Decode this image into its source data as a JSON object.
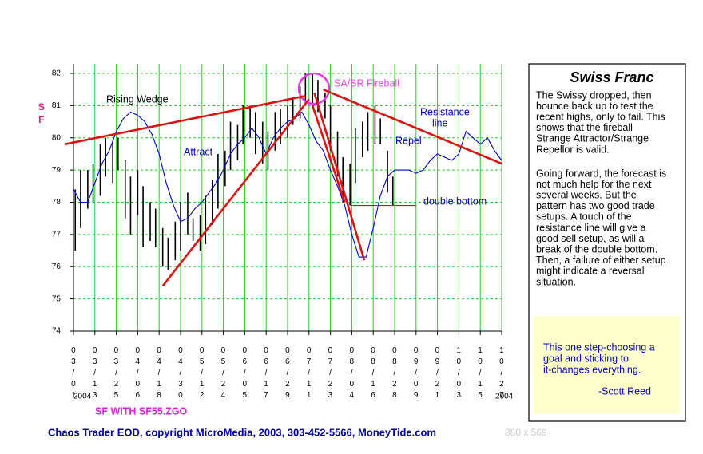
{
  "chart_data": {
    "type": "hilo",
    "y_label": "SF",
    "year_label": "2004",
    "ylim": [
      74,
      82
    ],
    "yticks": [
      74,
      75,
      76,
      77,
      78,
      79,
      80,
      81,
      82
    ],
    "xticks": [
      "03/01",
      "03/13",
      "03/25",
      "04/06",
      "04/18",
      "04/30",
      "05/12",
      "05/24",
      "06/05",
      "06/17",
      "06/29",
      "07/11",
      "07/23",
      "08/04",
      "08/16",
      "08/28",
      "09/09",
      "09/21",
      "10/03",
      "10/15",
      "10/27"
    ],
    "grid": true,
    "grid_color": "#22cc22",
    "bars": {
      "color": "#000000",
      "x": [
        "03/02",
        "03/05",
        "03/09",
        "03/12",
        "03/16",
        "03/19",
        "03/23",
        "03/26",
        "03/30",
        "04/02",
        "04/06",
        "04/09",
        "04/13",
        "04/16",
        "04/20",
        "04/23",
        "04/27",
        "04/30",
        "05/04",
        "05/07",
        "05/11",
        "05/14",
        "05/18",
        "05/21",
        "05/25",
        "05/28",
        "06/01",
        "06/04",
        "06/08",
        "06/11",
        "06/15",
        "06/18",
        "06/22",
        "06/25",
        "06/29",
        "07/02",
        "07/06",
        "07/09",
        "07/13",
        "07/16",
        "07/20",
        "07/23",
        "07/27",
        "07/30",
        "08/03",
        "08/06",
        "08/10",
        "08/13",
        "08/17",
        "08/20",
        "08/24",
        "08/27"
      ],
      "high": [
        78.4,
        79.0,
        79.0,
        79.2,
        79.8,
        80.0,
        79.9,
        80.0,
        79.3,
        78.8,
        79.0,
        78.5,
        78.0,
        77.8,
        77.2,
        76.9,
        77.4,
        78.0,
        78.3,
        77.5,
        77.6,
        78.2,
        78.7,
        79.5,
        79.6,
        80.5,
        80.4,
        81.0,
        81.0,
        80.8,
        80.5,
        80.2,
        80.8,
        80.9,
        81.0,
        81.2,
        81.6,
        82.0,
        82.0,
        81.8,
        81.4,
        81.0,
        80.2,
        79.4,
        79.2,
        80.3,
        80.5,
        80.8,
        81.0,
        80.6,
        79.6,
        78.8
      ],
      "low": [
        76.5,
        77.2,
        77.8,
        78.0,
        78.2,
        78.8,
        78.6,
        79.0,
        77.5,
        77.0,
        77.6,
        76.6,
        76.8,
        76.6,
        76.0,
        75.9,
        76.2,
        76.5,
        77.0,
        76.8,
        76.5,
        76.7,
        77.3,
        77.8,
        78.5,
        79.0,
        79.3,
        79.8,
        80.0,
        79.5,
        79.2,
        79.0,
        79.6,
        79.8,
        80.0,
        80.4,
        80.6,
        81.0,
        81.0,
        80.8,
        80.6,
        79.6,
        78.8,
        78.0,
        77.9,
        78.6,
        79.4,
        79.6,
        79.8,
        79.8,
        78.3,
        77.9
      ]
    },
    "forecast": {
      "type": "line",
      "color": "#0000cc",
      "x": [
        "03/01",
        "03/05",
        "03/09",
        "03/13",
        "03/17",
        "03/21",
        "03/25",
        "03/29",
        "04/02",
        "04/06",
        "04/10",
        "04/14",
        "04/18",
        "04/22",
        "04/26",
        "04/30",
        "05/04",
        "05/08",
        "05/12",
        "05/16",
        "05/20",
        "05/24",
        "05/28",
        "06/01",
        "06/05",
        "06/09",
        "06/13",
        "06/17",
        "06/21",
        "06/25",
        "06/29",
        "07/03",
        "07/07",
        "07/11",
        "07/15",
        "07/19",
        "07/23",
        "07/27",
        "07/31",
        "08/04",
        "08/08",
        "08/12",
        "08/16",
        "08/20",
        "08/24",
        "08/28",
        "09/01",
        "09/05",
        "09/09",
        "09/13",
        "09/17",
        "09/21",
        "09/25",
        "09/29",
        "10/03",
        "10/07",
        "10/11",
        "10/15",
        "10/19",
        "10/23",
        "10/27"
      ],
      "values": [
        78.4,
        78.0,
        78.0,
        78.6,
        79.2,
        79.6,
        80.2,
        80.6,
        80.8,
        80.7,
        80.5,
        80.1,
        79.5,
        78.6,
        77.9,
        77.4,
        77.5,
        77.8,
        78.0,
        78.3,
        78.6,
        79.0,
        79.5,
        79.8,
        80.0,
        80.3,
        80.0,
        79.5,
        80.0,
        80.3,
        80.5,
        80.6,
        80.8,
        80.4,
        79.9,
        79.6,
        79.0,
        78.5,
        77.9,
        77.0,
        76.3,
        76.3,
        77.2,
        78.2,
        78.8,
        79.0,
        79.0,
        79.0,
        78.9,
        79.0,
        79.3,
        79.5,
        79.4,
        79.3,
        79.5,
        80.2,
        80.0,
        79.8,
        80.0,
        79.6,
        79.3
      ]
    },
    "trendlines": [
      {
        "x": [
          "02/25",
          "07/09"
        ],
        "values": [
          79.8,
          81.3
        ],
        "color": "#e01010"
      },
      {
        "x": [
          "04/20",
          "07/11"
        ],
        "values": [
          75.4,
          81.2
        ],
        "color": "#e01010"
      },
      {
        "x": [
          "07/13",
          "07/31"
        ],
        "values": [
          81.0,
          78.0
        ],
        "color": "#e01010"
      },
      {
        "x": [
          "08/11",
          "07/14"
        ],
        "values": [
          76.2,
          81.4
        ],
        "color": "#e01010"
      },
      {
        "x": [
          "07/19",
          "10/27"
        ],
        "values": [
          81.5,
          79.2
        ],
        "color": "#e01010"
      },
      {
        "x": [
          "08/04",
          "09/09"
        ],
        "values": [
          77.9,
          77.9
        ],
        "color": "#aa2222"
      }
    ],
    "annotations": [
      {
        "text": "Rising Wedge",
        "color": "#000000"
      },
      {
        "text": "Attract",
        "color": "#0000cc"
      },
      {
        "text": "SA/SR Fireball",
        "color": "#ee44ee"
      },
      {
        "text": "Resistance",
        "color": "#0000cc"
      },
      {
        "text": "line",
        "color": "#0000cc"
      },
      {
        "text": "Repel",
        "color": "#0000cc"
      },
      {
        "text": "double bottom",
        "color": "#0000cc"
      }
    ]
  },
  "panel": {
    "title": "Swiss Franc",
    "paragraphs": [
      [
        "The Swissy dropped, then",
        "bounce back up to test the",
        "recent highs, only to fail. This",
        "shows that the fireball",
        "Strange Attractor/Strange",
        "Repellor is valid."
      ],
      [
        "Going forward, the forecast is",
        "not much help for the next",
        "several weeks. But the",
        "pattern has two good trade",
        "setups. A touch of the",
        "resistance line will give a",
        "good sell setup, as will a",
        "break of the double bottom.",
        "Then, a failure of either setup",
        "might indicate a reversal",
        "situation."
      ]
    ],
    "quote": [
      "This one step-choosing a",
      "goal and sticking to",
      "it-changes everything."
    ],
    "author": "-Scott Reed"
  },
  "footer": {
    "study": "SF WITH SF55.ZGO",
    "copyright": "Chaos Trader EOD, copyright MicroMedia, 2003, 303-452-5566, MoneyTide.com",
    "size": "880 x 569"
  }
}
